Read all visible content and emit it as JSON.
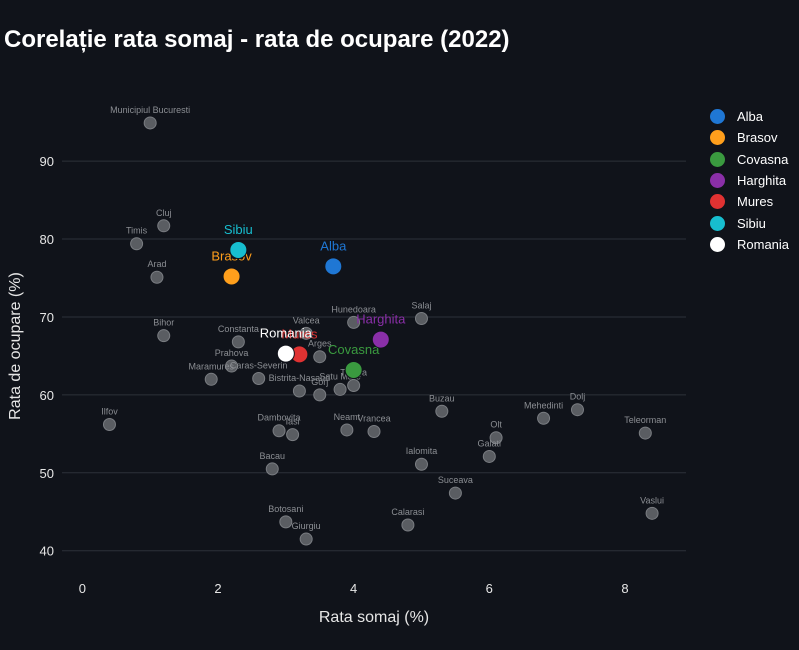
{
  "chart_data": {
    "type": "scatter",
    "title": "Corelație rata somaj - rata de ocupare (2022)",
    "xlabel": "Rata somaj (%)",
    "ylabel": "Rata de ocupare (%)",
    "xlim": [
      -0.3,
      8.9
    ],
    "ylim": [
      36.5,
      99
    ],
    "xticks": [
      0,
      2,
      4,
      6,
      8
    ],
    "yticks": [
      40,
      50,
      60,
      70,
      80,
      90
    ],
    "grid": true,
    "legend_position": "right",
    "background_points": [
      {
        "name": "Municipiul Bucuresti",
        "x": 1.0,
        "y": 94.9
      },
      {
        "name": "Timis",
        "x": 0.8,
        "y": 79.4
      },
      {
        "name": "Cluj",
        "x": 1.2,
        "y": 81.7
      },
      {
        "name": "Arad",
        "x": 1.1,
        "y": 75.1
      },
      {
        "name": "Bihor",
        "x": 1.2,
        "y": 67.6
      },
      {
        "name": "Constanta",
        "x": 2.3,
        "y": 66.8
      },
      {
        "name": "Valcea",
        "x": 3.3,
        "y": 67.9
      },
      {
        "name": "Hunedoara",
        "x": 4.0,
        "y": 69.3
      },
      {
        "name": "Salaj",
        "x": 5.0,
        "y": 69.8
      },
      {
        "name": "Prahova",
        "x": 2.2,
        "y": 63.7
      },
      {
        "name": "Maramures",
        "x": 1.9,
        "y": 62.0
      },
      {
        "name": "Caras-Severin",
        "x": 2.6,
        "y": 62.1
      },
      {
        "name": "Arges",
        "x": 3.5,
        "y": 64.9
      },
      {
        "name": "Bistrita-Nasaud",
        "x": 3.2,
        "y": 60.5
      },
      {
        "name": "Gorj",
        "x": 3.5,
        "y": 60.0
      },
      {
        "name": "Satu Mare",
        "x": 3.8,
        "y": 60.7
      },
      {
        "name": "Tulcea",
        "x": 4.0,
        "y": 61.2
      },
      {
        "name": "Ilfov",
        "x": 0.4,
        "y": 56.2
      },
      {
        "name": "Dambovita",
        "x": 2.9,
        "y": 55.4
      },
      {
        "name": "Iasi",
        "x": 3.1,
        "y": 54.9
      },
      {
        "name": "Neamt",
        "x": 3.9,
        "y": 55.5
      },
      {
        "name": "Vrancea",
        "x": 4.3,
        "y": 55.3
      },
      {
        "name": "Buzau",
        "x": 5.3,
        "y": 57.9
      },
      {
        "name": "Olt",
        "x": 6.1,
        "y": 54.5
      },
      {
        "name": "Mehedinti",
        "x": 6.8,
        "y": 57.0
      },
      {
        "name": "Dolj",
        "x": 7.3,
        "y": 58.1
      },
      {
        "name": "Teleorman",
        "x": 8.3,
        "y": 55.1
      },
      {
        "name": "Galati",
        "x": 6.0,
        "y": 52.1
      },
      {
        "name": "Ialomita",
        "x": 5.0,
        "y": 51.1
      },
      {
        "name": "Bacau",
        "x": 2.8,
        "y": 50.5
      },
      {
        "name": "Suceava",
        "x": 5.5,
        "y": 47.4
      },
      {
        "name": "Botosani",
        "x": 3.0,
        "y": 43.7
      },
      {
        "name": "Calarasi",
        "x": 4.8,
        "y": 43.3
      },
      {
        "name": "Giurgiu",
        "x": 3.3,
        "y": 41.5
      },
      {
        "name": "Vaslui",
        "x": 8.4,
        "y": 44.8
      }
    ],
    "series": [
      {
        "name": "Alba",
        "x": 3.7,
        "y": 76.5,
        "color": "#1f77d4"
      },
      {
        "name": "Brasov",
        "x": 2.2,
        "y": 75.2,
        "color": "#ff9f1c"
      },
      {
        "name": "Covasna",
        "x": 4.0,
        "y": 63.2,
        "color": "#3a9a3f"
      },
      {
        "name": "Harghita",
        "x": 4.4,
        "y": 67.1,
        "color": "#8a2fa8"
      },
      {
        "name": "Mures",
        "x": 3.2,
        "y": 65.2,
        "color": "#e03232"
      },
      {
        "name": "Sibiu",
        "x": 2.3,
        "y": 78.6,
        "color": "#17becf"
      },
      {
        "name": "Romania",
        "x": 3.0,
        "y": 65.3,
        "color": "#ffffff"
      }
    ]
  }
}
